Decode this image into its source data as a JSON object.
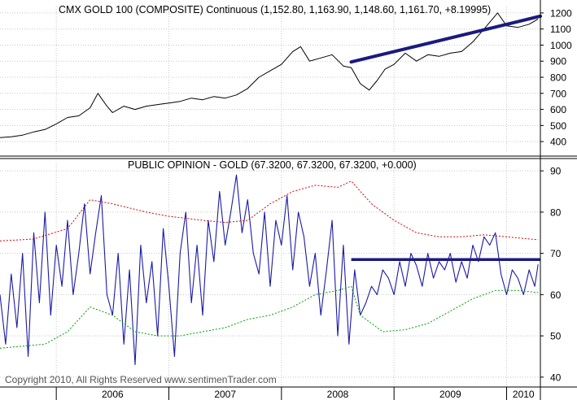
{
  "chart_data": [
    {
      "type": "line",
      "title": "CMX GOLD 100 (COMPOSITE) Continuous (1,152.80, 1,163.90, 1,148.60, 1,161.70, +8.19995)",
      "ylim": [
        340,
        1240
      ],
      "y_ticks": [
        "400",
        "500",
        "600",
        "700",
        "800",
        "900",
        "1000",
        "1100",
        "1200"
      ],
      "grid": true,
      "colors": {
        "price": "#000000",
        "trendline": "#1a1a80"
      },
      "series": [
        {
          "values_note": "",
          "x": [
            2005.5,
            2005.6,
            2005.7,
            2005.8,
            2005.9,
            2006.0,
            2006.1,
            2006.2,
            2006.3,
            2006.37,
            2006.45,
            2006.5,
            2006.6,
            2006.7,
            2006.8,
            2006.9,
            2007.0,
            2007.1,
            2007.2,
            2007.3,
            2007.4,
            2007.5,
            2007.6,
            2007.7,
            2007.8,
            2007.9,
            2008.0,
            2008.1,
            2008.17,
            2008.25,
            2008.35,
            2008.45,
            2008.55,
            2008.62,
            2008.7,
            2008.78,
            2008.85,
            2008.92,
            2009.0,
            2009.1,
            2009.2,
            2009.3,
            2009.4,
            2009.5,
            2009.6,
            2009.7,
            2009.8,
            2009.92,
            2010.0,
            2010.1,
            2010.2,
            2010.28
          ],
          "values": [
            425,
            430,
            440,
            460,
            475,
            510,
            550,
            560,
            610,
            700,
            620,
            580,
            620,
            600,
            620,
            630,
            640,
            650,
            670,
            660,
            680,
            670,
            690,
            730,
            800,
            840,
            880,
            960,
            990,
            900,
            920,
            940,
            870,
            860,
            760,
            720,
            780,
            850,
            880,
            950,
            900,
            940,
            930,
            950,
            960,
            1020,
            1100,
            1200,
            1120,
            1110,
            1130,
            1162
          ]
        }
      ],
      "trendline": {
        "x": [
          2008.62,
          2010.3
        ],
        "values": [
          895,
          1180
        ]
      }
    },
    {
      "type": "line",
      "title": "PUBLIC OPINION - GOLD (67.3200, 67.3200, 67.3200, +0.000)",
      "ylim": [
        38,
        92
      ],
      "y_ticks": [
        "40",
        "50",
        "60",
        "70",
        "80",
        "90"
      ],
      "x_ticks": [
        "2006",
        "2007",
        "2008",
        "2009",
        "2010"
      ],
      "grid": true,
      "colors": {
        "opinion": "#1a1aa8",
        "upper_band": "#e00000",
        "lower_band": "#00a000",
        "horizontal_line": "#1a1a80"
      },
      "series": [
        {
          "values_note": "",
          "x": [
            2005.5,
            2005.55,
            2005.6,
            2005.65,
            2005.7,
            2005.75,
            2005.8,
            2005.85,
            2005.9,
            2005.95,
            2006.0,
            2006.05,
            2006.1,
            2006.15,
            2006.2,
            2006.25,
            2006.3,
            2006.35,
            2006.4,
            2006.45,
            2006.5,
            2006.55,
            2006.6,
            2006.65,
            2006.7,
            2006.75,
            2006.8,
            2006.85,
            2006.9,
            2006.95,
            2007.0,
            2007.05,
            2007.1,
            2007.15,
            2007.2,
            2007.25,
            2007.3,
            2007.35,
            2007.4,
            2007.45,
            2007.5,
            2007.55,
            2007.6,
            2007.65,
            2007.7,
            2007.75,
            2007.8,
            2007.85,
            2007.9,
            2007.95,
            2008.0,
            2008.05,
            2008.1,
            2008.15,
            2008.2,
            2008.25,
            2008.3,
            2008.35,
            2008.4,
            2008.45,
            2008.5,
            2008.55,
            2008.6,
            2008.65,
            2008.7,
            2008.75,
            2008.8,
            2008.85,
            2008.9,
            2008.95,
            2009.0,
            2009.05,
            2009.1,
            2009.15,
            2009.2,
            2009.25,
            2009.3,
            2009.35,
            2009.4,
            2009.45,
            2009.5,
            2009.55,
            2009.6,
            2009.65,
            2009.7,
            2009.75,
            2009.8,
            2009.85,
            2009.9,
            2009.95,
            2010.0,
            2010.05,
            2010.1,
            2010.15,
            2010.2,
            2010.25,
            2010.28
          ],
          "values": [
            60,
            48,
            65,
            52,
            70,
            45,
            75,
            58,
            80,
            55,
            72,
            62,
            78,
            60,
            70,
            82,
            65,
            75,
            84,
            60,
            55,
            70,
            48,
            66,
            43,
            72,
            58,
            68,
            50,
            76,
            62,
            45,
            70,
            80,
            58,
            72,
            55,
            78,
            68,
            85,
            72,
            80,
            89,
            75,
            83,
            70,
            65,
            80,
            62,
            78,
            72,
            84,
            66,
            80,
            74,
            62,
            70,
            55,
            66,
            78,
            50,
            72,
            48,
            66,
            55,
            58,
            62,
            60,
            66,
            64,
            60,
            68,
            62,
            70,
            67,
            62,
            70,
            64,
            68,
            66,
            70,
            63,
            68,
            64,
            72,
            68,
            74,
            72,
            75,
            65,
            60,
            66,
            64,
            60,
            66,
            62,
            67.32
          ]
        },
        {
          "values_note": "",
          "x": [
            2005.5,
            2005.8,
            2006.1,
            2006.3,
            2006.5,
            2006.8,
            2007.0,
            2007.3,
            2007.5,
            2007.7,
            2007.9,
            2008.1,
            2008.3,
            2008.5,
            2008.62,
            2008.8,
            2009.0,
            2009.2,
            2009.4,
            2009.6,
            2009.8,
            2010.0,
            2010.2,
            2010.28
          ],
          "values": [
            73,
            73.5,
            76,
            83,
            82,
            80,
            79,
            78,
            77.5,
            78,
            82,
            85,
            86.5,
            86,
            87.5,
            82,
            78,
            75,
            74,
            74,
            74.5,
            74,
            73.5,
            73.3
          ]
        },
        {
          "values_note": "",
          "x": [
            2005.5,
            2005.7,
            2005.9,
            2006.1,
            2006.3,
            2006.5,
            2006.7,
            2006.9,
            2007.1,
            2007.3,
            2007.5,
            2007.7,
            2007.9,
            2008.1,
            2008.3,
            2008.5,
            2008.62,
            2008.7,
            2008.9,
            2009.1,
            2009.3,
            2009.5,
            2009.7,
            2009.9,
            2010.1,
            2010.28
          ],
          "values": [
            47,
            47.5,
            48,
            51,
            57,
            55,
            51,
            50,
            50,
            51,
            52,
            54,
            55,
            57,
            60,
            61,
            62,
            55,
            51,
            51.5,
            53,
            56,
            59,
            61,
            61,
            60.5
          ]
        }
      ],
      "horizontal_line": {
        "x": [
          2008.62,
          2010.3
        ],
        "value": 68.5
      }
    }
  ],
  "footer": {
    "copyright": "Copyright 2010, All Rights Reserved  www.sentimenTrader.com"
  }
}
